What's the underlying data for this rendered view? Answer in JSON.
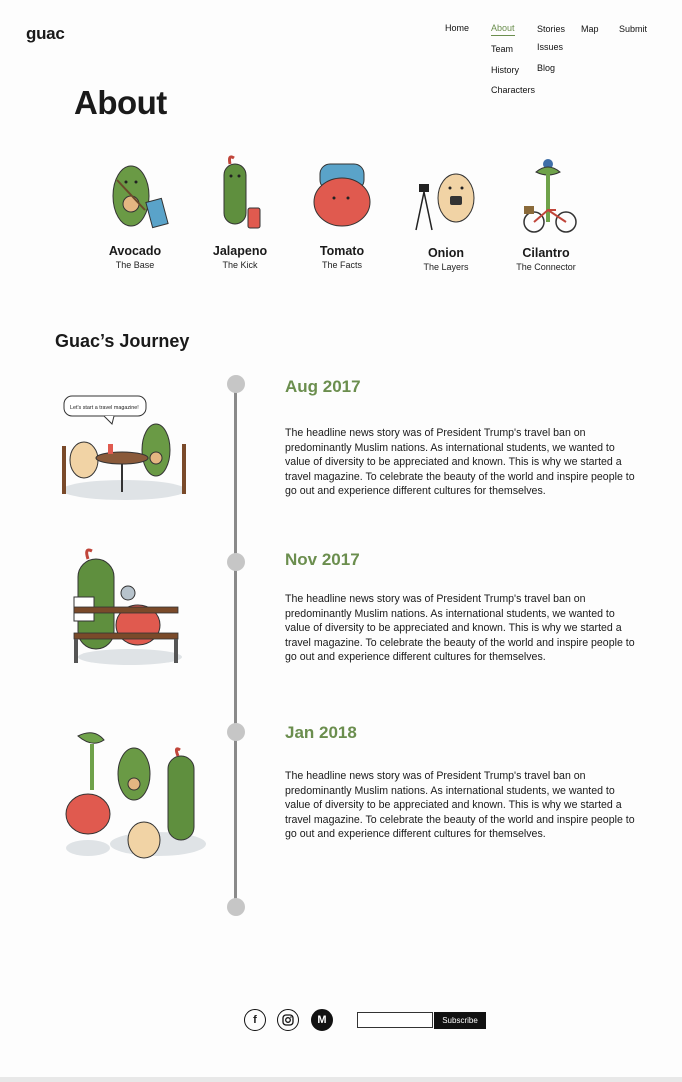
{
  "brand": {
    "logo": "guac"
  },
  "nav": {
    "home": "Home",
    "about": "About",
    "stories": "Stories",
    "map": "Map",
    "submit": "Submit",
    "about_sub": [
      "Team",
      "History",
      "Characters"
    ],
    "stories_sub": [
      "Issues",
      "Blog"
    ]
  },
  "page": {
    "title": "About"
  },
  "characters": [
    {
      "name": "Avocado",
      "role": "The Base"
    },
    {
      "name": "Jalapeno",
      "role": "The Kick"
    },
    {
      "name": "Tomato",
      "role": "The Facts"
    },
    {
      "name": "Onion",
      "role": "The Layers"
    },
    {
      "name": "Cilantro",
      "role": "The Connector"
    }
  ],
  "journey": {
    "title": "Guac’s Journey",
    "speech_bubble": "Let's start a travel magazine!",
    "entries": [
      {
        "date": "Aug 2017",
        "text": "The headline news story was of President Trump's travel ban on predominantly Muslim nations. As international students, we wanted to value of diversity to be appreciated and known. This is why we started a travel magazine. To celebrate the beauty of the world and inspire people to go out and experience different cultures for themselves."
      },
      {
        "date": "Nov 2017",
        "text": "The headline news story was of President Trump's travel ban on predominantly Muslim nations. As international students, we wanted to value of diversity to be appreciated and known. This is why we started a travel magazine. To celebrate the beauty of the world and inspire people to go out and experience different cultures for themselves."
      },
      {
        "date": "Jan 2018",
        "text": "The headline news story was of President Trump's travel ban on predominantly Muslim nations. As international students, we wanted to value of diversity to be appreciated and known. This is why we started a travel magazine. To celebrate the beauty of the world and inspire people to go out and experience different cultures for themselves."
      }
    ]
  },
  "footer": {
    "icons": [
      "facebook-icon",
      "instagram-icon",
      "medium-icon"
    ],
    "subscribe_placeholder": "",
    "subscribe_label": "Subscribe"
  },
  "colors": {
    "accent": "#6b8e4e",
    "timeline": "#8a8a8a",
    "dot": "#c6c6c6",
    "avocado": "#6a9a45",
    "tomato": "#e05a4f",
    "onion": "#f1d3a5"
  }
}
